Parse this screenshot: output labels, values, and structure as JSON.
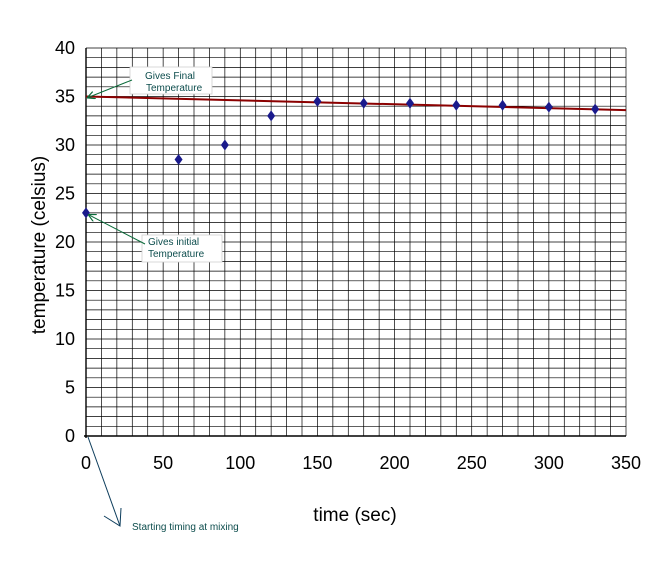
{
  "chart_data": {
    "type": "scatter",
    "title": "",
    "xlabel": "time (sec)",
    "ylabel": "temperature (celsius)",
    "xlim": [
      0,
      350
    ],
    "ylim": [
      0,
      40
    ],
    "x_ticks": [
      0,
      50,
      100,
      150,
      200,
      250,
      300,
      350
    ],
    "y_ticks": [
      0,
      5,
      10,
      15,
      20,
      25,
      30,
      35,
      40
    ],
    "grid": true,
    "legend": "none",
    "marker_color": "#1a1a8c",
    "trend_color": "#8b0000",
    "grid_color": "#000000",
    "series": [
      {
        "x": [
          0,
          60,
          90,
          120,
          150,
          180,
          210,
          240,
          270,
          300,
          330
        ],
        "y": [
          23,
          28.5,
          30,
          33,
          34.5,
          34.3,
          34.3,
          34.1,
          34.1,
          33.9,
          33.7
        ]
      }
    ],
    "trendline": {
      "x": [
        0,
        350
      ],
      "y": [
        35,
        33.6
      ]
    },
    "annotations": [
      {
        "lines": [
          "Gives Final",
          "Temperature"
        ]
      },
      {
        "lines": [
          "Gives initial",
          "Temperature"
        ]
      },
      {
        "lines": [
          "Starting timing at mixing"
        ]
      }
    ]
  }
}
